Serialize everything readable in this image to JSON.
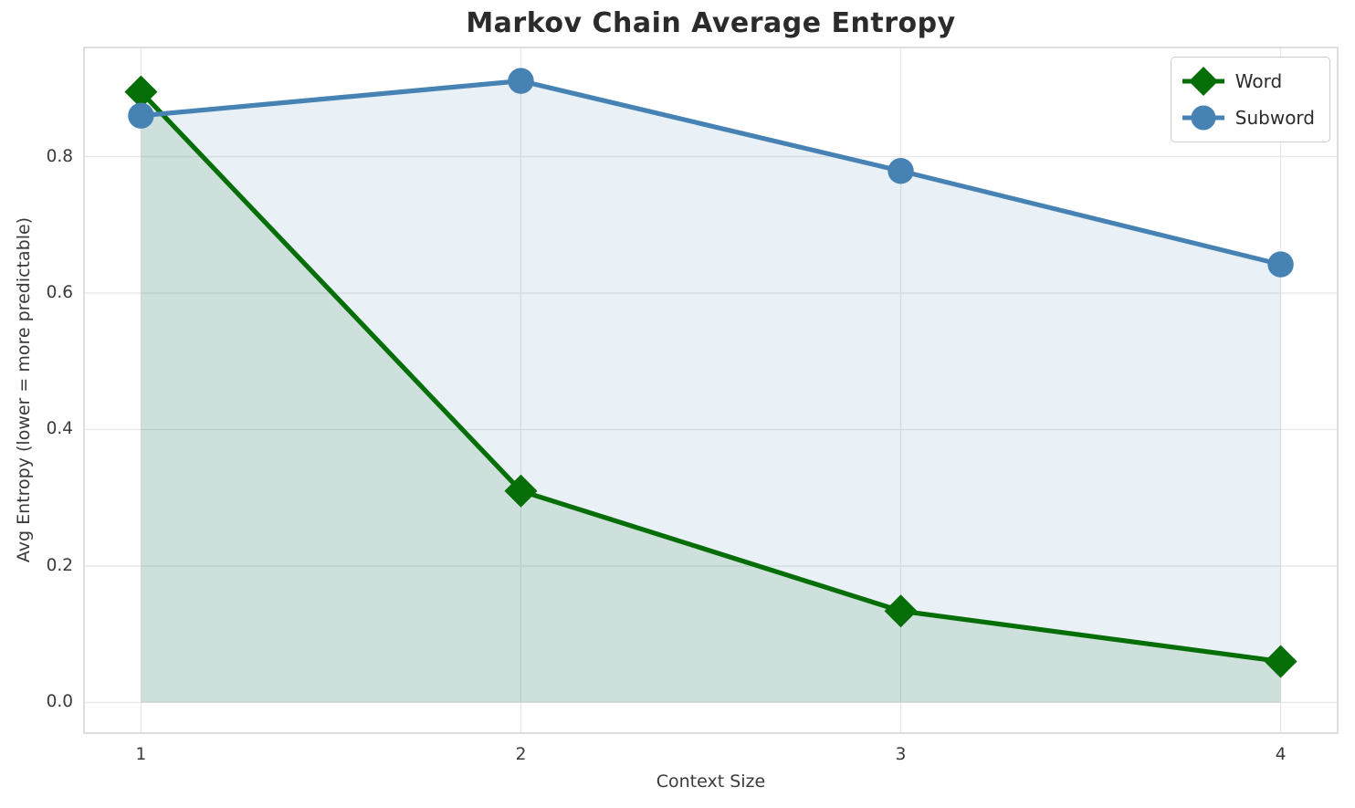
{
  "figure": {
    "title": "Markov Chain Average Entropy"
  },
  "chart_data": {
    "type": "line",
    "title": "Markov Chain Average Entropy",
    "xlabel": "Context Size",
    "ylabel": "Avg Entropy (lower = more predictable)",
    "x": [
      1,
      2,
      3,
      4
    ],
    "series": [
      {
        "name": "Word",
        "values": [
          0.895,
          0.31,
          0.134,
          0.06
        ],
        "color": "#066e06",
        "marker": "diamond",
        "area_fill": true
      },
      {
        "name": "Subword",
        "values": [
          0.86,
          0.911,
          0.779,
          0.642
        ],
        "color": "#4682b4",
        "marker": "circle",
        "area_fill": true
      }
    ],
    "xticks": [
      1,
      2,
      3,
      4
    ],
    "yticks": [
      0.0,
      0.2,
      0.4,
      0.6,
      0.8
    ],
    "xtick_labels": [
      "1",
      "2",
      "3",
      "4"
    ],
    "ytick_labels": [
      "0.0",
      "0.2",
      "0.4",
      "0.6",
      "0.8"
    ],
    "xlim": [
      0.85,
      4.15
    ],
    "ylim": [
      -0.045,
      0.96
    ],
    "grid": true,
    "fill_baseline": 0,
    "fill_opacity": 0.12,
    "legend": {
      "position": "upper right",
      "labels": [
        "Word",
        "Subword"
      ]
    },
    "colors": {
      "grid": "#e8e8e8",
      "border": "#d4d4d4",
      "word_line": "#066e06",
      "subword_line": "#4682b4"
    }
  }
}
